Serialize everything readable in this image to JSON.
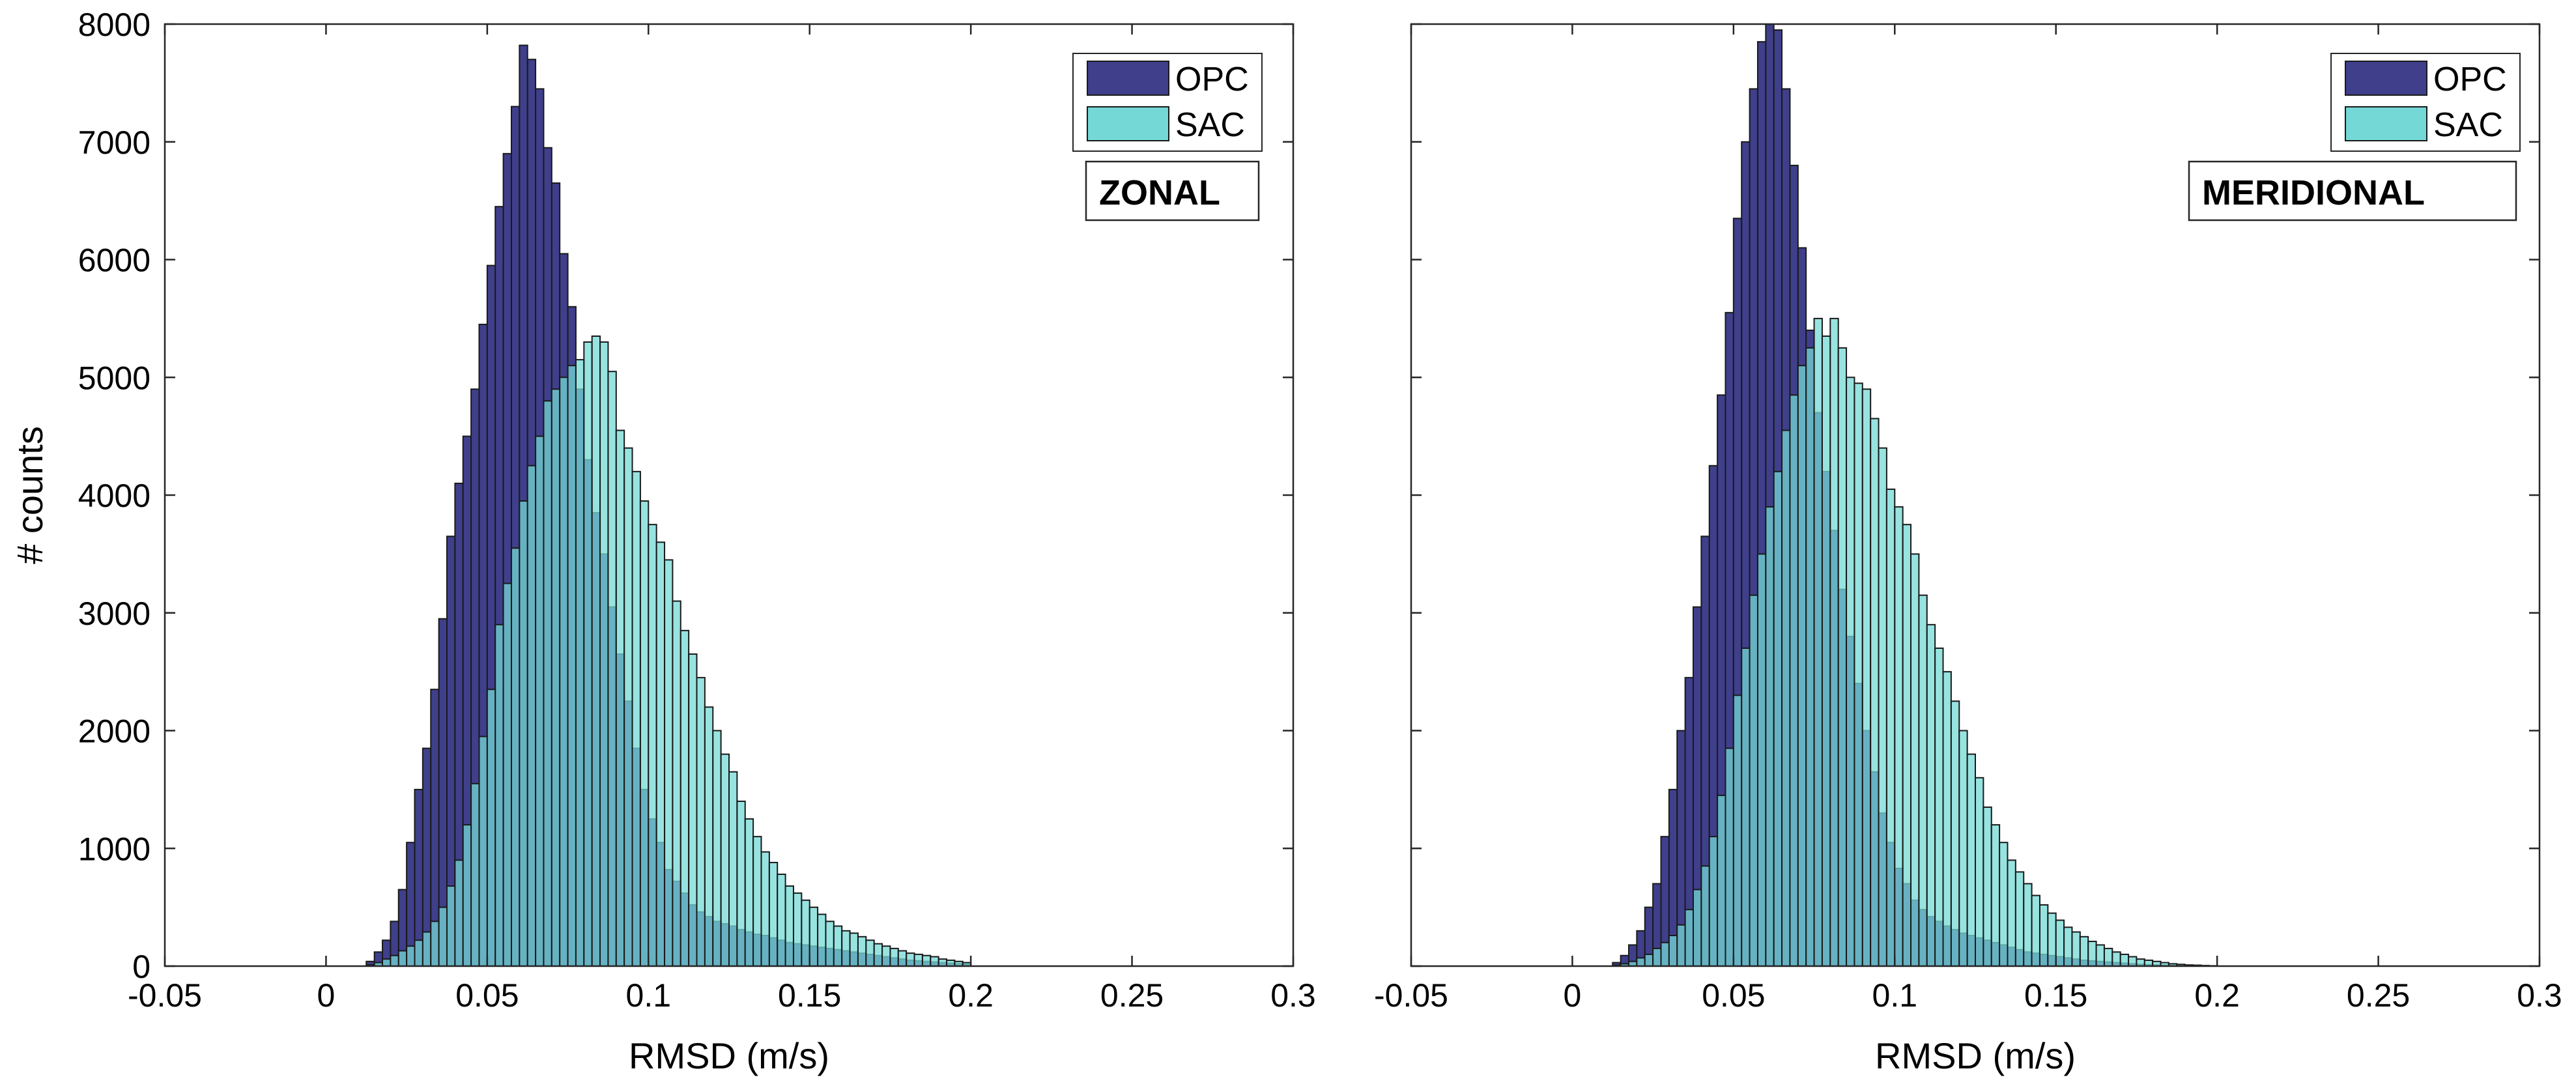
{
  "chart_data": [
    {
      "type": "bar",
      "title": "",
      "annotation": "ZONAL",
      "xlabel": "RMSD (m/s)",
      "ylabel": "# counts",
      "xlim": [
        -0.05,
        0.3
      ],
      "ylim": [
        0,
        8000
      ],
      "xticks": [
        "-0.05",
        "0",
        "0.05",
        "0.1",
        "0.15",
        "0.2",
        "0.25",
        "0.3"
      ],
      "yticks": [
        "0",
        "1000",
        "2000",
        "3000",
        "4000",
        "5000",
        "6000",
        "7000",
        "8000"
      ],
      "legend": [
        "OPC",
        "SAC"
      ],
      "legend_position": "top-right",
      "bin_start": 0.0125,
      "bin_width": 0.0025,
      "series": [
        {
          "name": "OPC",
          "color": "#3f3f8c",
          "values": [
            40,
            120,
            220,
            380,
            650,
            1050,
            1500,
            1850,
            2350,
            2950,
            3650,
            4100,
            4500,
            4900,
            5450,
            5950,
            6450,
            6900,
            7300,
            7820,
            7700,
            7450,
            6950,
            6650,
            6050,
            5600,
            4900,
            4300,
            3850,
            3500,
            3050,
            2650,
            2250,
            1850,
            1500,
            1250,
            1050,
            820,
            720,
            620,
            520,
            460,
            420,
            380,
            360,
            340,
            310,
            290,
            270,
            260,
            240,
            220,
            200,
            190,
            180,
            170,
            160,
            150,
            140,
            130,
            120,
            110,
            100,
            90,
            80,
            70,
            60,
            50,
            45,
            40,
            35,
            30,
            25,
            20,
            15
          ]
        },
        {
          "name": "SAC",
          "color": "#74d9d6",
          "values": [
            10,
            30,
            60,
            90,
            130,
            170,
            220,
            290,
            380,
            500,
            680,
            900,
            1200,
            1550,
            1950,
            2350,
            2900,
            3250,
            3550,
            3950,
            4250,
            4500,
            4800,
            4900,
            5000,
            5100,
            5150,
            5300,
            5350,
            5300,
            5050,
            4550,
            4400,
            4200,
            3950,
            3750,
            3600,
            3450,
            3100,
            2850,
            2650,
            2450,
            2200,
            2000,
            1800,
            1650,
            1400,
            1250,
            1100,
            970,
            880,
            780,
            680,
            620,
            560,
            500,
            440,
            380,
            340,
            300,
            280,
            250,
            220,
            190,
            170,
            150,
            130,
            110,
            100,
            90,
            80,
            60,
            50,
            40,
            30
          ]
        }
      ]
    },
    {
      "type": "bar",
      "title": "",
      "annotation": "MERIDIONAL",
      "xlabel": "RMSD (m/s)",
      "ylabel": "",
      "xlim": [
        -0.05,
        0.3
      ],
      "ylim": [
        0,
        8000
      ],
      "xticks": [
        "-0.05",
        "0",
        "0.05",
        "0.1",
        "0.15",
        "0.2",
        "0.25",
        "0.3"
      ],
      "yticks": [],
      "legend": [
        "OPC",
        "SAC"
      ],
      "legend_position": "top-right",
      "bin_start": 0.0125,
      "bin_width": 0.0025,
      "series": [
        {
          "name": "OPC",
          "color": "#3f3f8c",
          "values": [
            30,
            90,
            180,
            300,
            500,
            700,
            1100,
            1500,
            2000,
            2450,
            3050,
            3650,
            4250,
            4850,
            5550,
            6350,
            7000,
            7450,
            7850,
            8000,
            7950,
            7450,
            6800,
            6100,
            5400,
            4700,
            4200,
            3700,
            3200,
            2800,
            2400,
            2000,
            1650,
            1300,
            1050,
            830,
            700,
            560,
            480,
            420,
            380,
            340,
            310,
            280,
            260,
            240,
            220,
            200,
            180,
            160,
            140,
            120,
            110,
            100,
            90,
            80,
            70,
            60,
            50,
            45,
            40,
            35,
            30,
            25,
            20,
            15,
            12,
            10,
            8,
            6,
            5,
            4,
            3,
            2,
            1
          ]
        },
        {
          "name": "SAC",
          "color": "#74d9d6",
          "values": [
            8,
            20,
            40,
            70,
            100,
            150,
            200,
            260,
            350,
            480,
            650,
            850,
            1100,
            1450,
            1850,
            2300,
            2700,
            3150,
            3500,
            3900,
            4200,
            4550,
            4850,
            5100,
            5250,
            5500,
            5350,
            5500,
            5250,
            5000,
            4950,
            4900,
            4650,
            4400,
            4050,
            3900,
            3750,
            3500,
            3150,
            2900,
            2700,
            2500,
            2250,
            2000,
            1800,
            1600,
            1350,
            1200,
            1050,
            900,
            800,
            700,
            600,
            520,
            450,
            390,
            330,
            290,
            250,
            210,
            180,
            150,
            120,
            100,
            80,
            60,
            50,
            40,
            30,
            20,
            15,
            10,
            8,
            5,
            3
          ]
        }
      ]
    }
  ]
}
